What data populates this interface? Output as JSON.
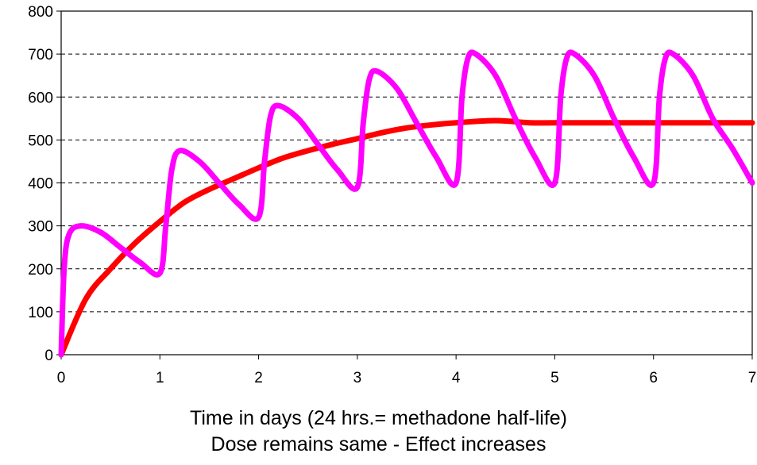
{
  "chart_data": {
    "type": "line",
    "title": "",
    "xlabel_lines": [
      "Time in days (24 hrs.= methadone half-life)",
      "Dose remains same - Effect increases"
    ],
    "ylabel": "",
    "xlim": [
      0,
      7
    ],
    "ylim": [
      0,
      800
    ],
    "xticks": [
      0,
      1,
      2,
      3,
      4,
      5,
      6,
      7
    ],
    "yticks": [
      0,
      100,
      200,
      300,
      400,
      500,
      600,
      700,
      800
    ],
    "grid": "horizontal dashed",
    "legend": "none",
    "series": [
      {
        "color": "#ff0000",
        "x": [
          0,
          0.25,
          0.5,
          0.75,
          1.0,
          1.25,
          1.5,
          1.75,
          2.0,
          2.25,
          2.5,
          2.75,
          3.0,
          3.25,
          3.5,
          3.75,
          4.0,
          4.4,
          4.75,
          5.0,
          5.5,
          6.0,
          6.5,
          7.0
        ],
        "y": [
          0,
          130,
          200,
          260,
          310,
          355,
          385,
          410,
          435,
          458,
          475,
          490,
          503,
          517,
          528,
          535,
          540,
          545,
          540,
          540,
          540,
          540,
          540,
          540
        ]
      },
      {
        "color": "#ff00ff",
        "x": [
          0,
          0.03,
          0.08,
          0.2,
          0.4,
          0.6,
          0.8,
          1.0,
          1.06,
          1.12,
          1.2,
          1.4,
          1.6,
          1.8,
          2.0,
          2.06,
          2.12,
          2.2,
          2.4,
          2.6,
          2.8,
          3.0,
          3.06,
          3.12,
          3.2,
          3.4,
          3.6,
          3.8,
          4.0,
          4.06,
          4.12,
          4.2,
          4.4,
          4.6,
          4.8,
          5.0,
          5.06,
          5.12,
          5.2,
          5.4,
          5.6,
          5.8,
          6.0,
          6.06,
          6.12,
          6.2,
          6.4,
          6.6,
          6.8,
          7.0
        ],
        "y": [
          0,
          200,
          280,
          300,
          285,
          250,
          215,
          190,
          300,
          430,
          475,
          450,
          400,
          350,
          320,
          450,
          555,
          580,
          550,
          490,
          430,
          390,
          540,
          640,
          660,
          620,
          540,
          460,
          400,
          600,
          690,
          700,
          650,
          550,
          460,
          400,
          600,
          690,
          700,
          650,
          550,
          460,
          400,
          600,
          690,
          700,
          650,
          550,
          480,
          400
        ]
      }
    ]
  }
}
